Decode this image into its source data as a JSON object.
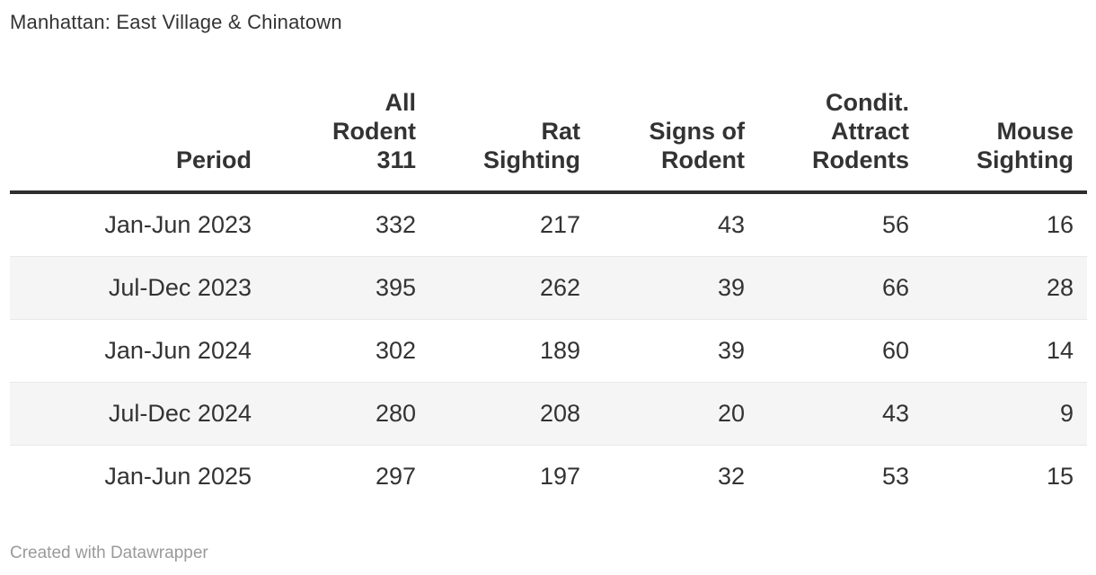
{
  "title": "Manhattan: East Village & Chinatown",
  "footer": {
    "credit": "Created with Datawrapper"
  },
  "colors": {
    "background": "#ffffff",
    "text": "#333333",
    "header_rule": "#2e2e2e",
    "row_stripe": "#f5f5f5",
    "row_border": "#e8e8e8",
    "footer_text": "#9a9a9a"
  },
  "chart_data": {
    "type": "table",
    "title": "Manhattan: East Village & Chinatown",
    "layout_hints": {
      "alignment": "right",
      "zebra_striping": true,
      "striped_rows": [
        "Jul-Dec 2023",
        "Jul-Dec 2024"
      ],
      "header_rule": "thick dark line below header"
    },
    "columns": [
      {
        "id": "period",
        "label": "Period",
        "display": "Period"
      },
      {
        "id": "all_rodent_311",
        "label": "All Rodent 311",
        "display": "All\nRodent\n311"
      },
      {
        "id": "rat_sighting",
        "label": "Rat Sighting",
        "display": "Rat\nSighting"
      },
      {
        "id": "signs_of_rodent",
        "label": "Signs of Rodent",
        "display": "Signs of\nRodent"
      },
      {
        "id": "condit_attract_rodents",
        "label": "Condit. Attract Rodents",
        "display": "Condit.\nAttract\nRodents"
      },
      {
        "id": "mouse_sighting",
        "label": "Mouse Sighting",
        "display": "Mouse\nSighting"
      }
    ],
    "rows": [
      {
        "period": "Jan-Jun 2023",
        "values": [
          332,
          217,
          43,
          56,
          16
        ]
      },
      {
        "period": "Jul-Dec 2023",
        "values": [
          395,
          262,
          39,
          66,
          28
        ]
      },
      {
        "period": "Jan-Jun 2024",
        "values": [
          302,
          189,
          39,
          60,
          14
        ]
      },
      {
        "period": "Jul-Dec 2024",
        "values": [
          280,
          208,
          20,
          43,
          9
        ]
      },
      {
        "period": "Jan-Jun 2025",
        "values": [
          297,
          197,
          32,
          53,
          15
        ]
      }
    ]
  }
}
